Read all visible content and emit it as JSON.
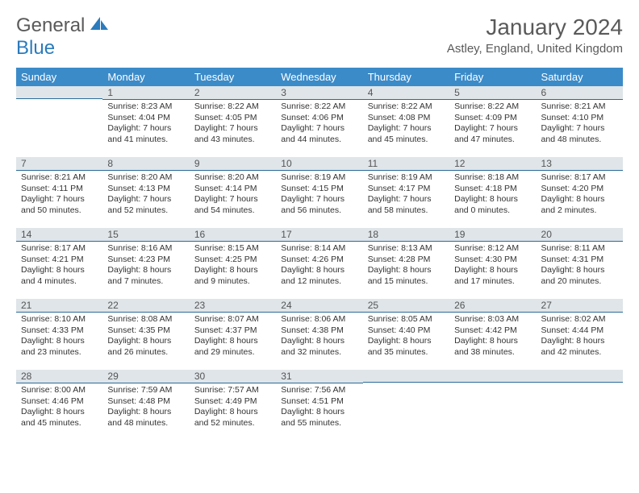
{
  "logo": {
    "text1": "General",
    "text2": "Blue"
  },
  "title": "January 2024",
  "location": "Astley, England, United Kingdom",
  "colors": {
    "header_bg": "#3b8bc9",
    "header_text": "#ffffff",
    "daybar_bg": "#dfe5e9",
    "daybar_border": "#2b6a9b",
    "logo_gray": "#5a5a5a",
    "logo_blue": "#2b7bbd"
  },
  "weekdays": [
    "Sunday",
    "Monday",
    "Tuesday",
    "Wednesday",
    "Thursday",
    "Friday",
    "Saturday"
  ],
  "weeks": [
    [
      {
        "day": "",
        "sunrise": "",
        "sunset": "",
        "daylight": ""
      },
      {
        "day": "1",
        "sunrise": "Sunrise: 8:23 AM",
        "sunset": "Sunset: 4:04 PM",
        "daylight": "Daylight: 7 hours and 41 minutes."
      },
      {
        "day": "2",
        "sunrise": "Sunrise: 8:22 AM",
        "sunset": "Sunset: 4:05 PM",
        "daylight": "Daylight: 7 hours and 43 minutes."
      },
      {
        "day": "3",
        "sunrise": "Sunrise: 8:22 AM",
        "sunset": "Sunset: 4:06 PM",
        "daylight": "Daylight: 7 hours and 44 minutes."
      },
      {
        "day": "4",
        "sunrise": "Sunrise: 8:22 AM",
        "sunset": "Sunset: 4:08 PM",
        "daylight": "Daylight: 7 hours and 45 minutes."
      },
      {
        "day": "5",
        "sunrise": "Sunrise: 8:22 AM",
        "sunset": "Sunset: 4:09 PM",
        "daylight": "Daylight: 7 hours and 47 minutes."
      },
      {
        "day": "6",
        "sunrise": "Sunrise: 8:21 AM",
        "sunset": "Sunset: 4:10 PM",
        "daylight": "Daylight: 7 hours and 48 minutes."
      }
    ],
    [
      {
        "day": "7",
        "sunrise": "Sunrise: 8:21 AM",
        "sunset": "Sunset: 4:11 PM",
        "daylight": "Daylight: 7 hours and 50 minutes."
      },
      {
        "day": "8",
        "sunrise": "Sunrise: 8:20 AM",
        "sunset": "Sunset: 4:13 PM",
        "daylight": "Daylight: 7 hours and 52 minutes."
      },
      {
        "day": "9",
        "sunrise": "Sunrise: 8:20 AM",
        "sunset": "Sunset: 4:14 PM",
        "daylight": "Daylight: 7 hours and 54 minutes."
      },
      {
        "day": "10",
        "sunrise": "Sunrise: 8:19 AM",
        "sunset": "Sunset: 4:15 PM",
        "daylight": "Daylight: 7 hours and 56 minutes."
      },
      {
        "day": "11",
        "sunrise": "Sunrise: 8:19 AM",
        "sunset": "Sunset: 4:17 PM",
        "daylight": "Daylight: 7 hours and 58 minutes."
      },
      {
        "day": "12",
        "sunrise": "Sunrise: 8:18 AM",
        "sunset": "Sunset: 4:18 PM",
        "daylight": "Daylight: 8 hours and 0 minutes."
      },
      {
        "day": "13",
        "sunrise": "Sunrise: 8:17 AM",
        "sunset": "Sunset: 4:20 PM",
        "daylight": "Daylight: 8 hours and 2 minutes."
      }
    ],
    [
      {
        "day": "14",
        "sunrise": "Sunrise: 8:17 AM",
        "sunset": "Sunset: 4:21 PM",
        "daylight": "Daylight: 8 hours and 4 minutes."
      },
      {
        "day": "15",
        "sunrise": "Sunrise: 8:16 AM",
        "sunset": "Sunset: 4:23 PM",
        "daylight": "Daylight: 8 hours and 7 minutes."
      },
      {
        "day": "16",
        "sunrise": "Sunrise: 8:15 AM",
        "sunset": "Sunset: 4:25 PM",
        "daylight": "Daylight: 8 hours and 9 minutes."
      },
      {
        "day": "17",
        "sunrise": "Sunrise: 8:14 AM",
        "sunset": "Sunset: 4:26 PM",
        "daylight": "Daylight: 8 hours and 12 minutes."
      },
      {
        "day": "18",
        "sunrise": "Sunrise: 8:13 AM",
        "sunset": "Sunset: 4:28 PM",
        "daylight": "Daylight: 8 hours and 15 minutes."
      },
      {
        "day": "19",
        "sunrise": "Sunrise: 8:12 AM",
        "sunset": "Sunset: 4:30 PM",
        "daylight": "Daylight: 8 hours and 17 minutes."
      },
      {
        "day": "20",
        "sunrise": "Sunrise: 8:11 AM",
        "sunset": "Sunset: 4:31 PM",
        "daylight": "Daylight: 8 hours and 20 minutes."
      }
    ],
    [
      {
        "day": "21",
        "sunrise": "Sunrise: 8:10 AM",
        "sunset": "Sunset: 4:33 PM",
        "daylight": "Daylight: 8 hours and 23 minutes."
      },
      {
        "day": "22",
        "sunrise": "Sunrise: 8:08 AM",
        "sunset": "Sunset: 4:35 PM",
        "daylight": "Daylight: 8 hours and 26 minutes."
      },
      {
        "day": "23",
        "sunrise": "Sunrise: 8:07 AM",
        "sunset": "Sunset: 4:37 PM",
        "daylight": "Daylight: 8 hours and 29 minutes."
      },
      {
        "day": "24",
        "sunrise": "Sunrise: 8:06 AM",
        "sunset": "Sunset: 4:38 PM",
        "daylight": "Daylight: 8 hours and 32 minutes."
      },
      {
        "day": "25",
        "sunrise": "Sunrise: 8:05 AM",
        "sunset": "Sunset: 4:40 PM",
        "daylight": "Daylight: 8 hours and 35 minutes."
      },
      {
        "day": "26",
        "sunrise": "Sunrise: 8:03 AM",
        "sunset": "Sunset: 4:42 PM",
        "daylight": "Daylight: 8 hours and 38 minutes."
      },
      {
        "day": "27",
        "sunrise": "Sunrise: 8:02 AM",
        "sunset": "Sunset: 4:44 PM",
        "daylight": "Daylight: 8 hours and 42 minutes."
      }
    ],
    [
      {
        "day": "28",
        "sunrise": "Sunrise: 8:00 AM",
        "sunset": "Sunset: 4:46 PM",
        "daylight": "Daylight: 8 hours and 45 minutes."
      },
      {
        "day": "29",
        "sunrise": "Sunrise: 7:59 AM",
        "sunset": "Sunset: 4:48 PM",
        "daylight": "Daylight: 8 hours and 48 minutes."
      },
      {
        "day": "30",
        "sunrise": "Sunrise: 7:57 AM",
        "sunset": "Sunset: 4:49 PM",
        "daylight": "Daylight: 8 hours and 52 minutes."
      },
      {
        "day": "31",
        "sunrise": "Sunrise: 7:56 AM",
        "sunset": "Sunset: 4:51 PM",
        "daylight": "Daylight: 8 hours and 55 minutes."
      },
      {
        "day": "",
        "sunrise": "",
        "sunset": "",
        "daylight": ""
      },
      {
        "day": "",
        "sunrise": "",
        "sunset": "",
        "daylight": ""
      },
      {
        "day": "",
        "sunrise": "",
        "sunset": "",
        "daylight": ""
      }
    ]
  ]
}
